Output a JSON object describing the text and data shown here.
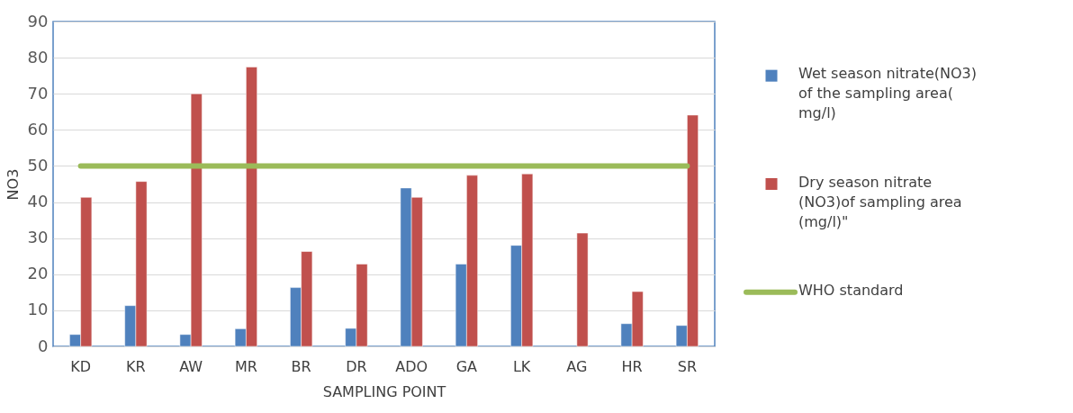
{
  "chart_data": {
    "type": "bar",
    "categories": [
      "KD",
      "KR",
      "AW",
      "MR",
      "BR",
      "DR",
      "ADO",
      "GA",
      "LK",
      "AG",
      "HR",
      "SR"
    ],
    "xlabel": "SAMPLING POINT",
    "ylabel": "NO3",
    "series": [
      {
        "name": "Wet season nitrate(NO3) of the sampling area( mg/l)",
        "color": "#4f81bd",
        "values": [
          3.3,
          11.3,
          3.3,
          4.9,
          16.3,
          5.0,
          43.9,
          22.8,
          28.0,
          null,
          6.3,
          5.8
        ]
      },
      {
        "name": "Dry season nitrate (NO3)of sampling area (mg/l)\"",
        "color": "#c0504d",
        "values": [
          41.3,
          45.7,
          70.0,
          77.4,
          26.3,
          22.8,
          41.3,
          47.4,
          47.8,
          31.4,
          15.2,
          64.1
        ]
      },
      {
        "name": "WHO standard",
        "color": "#9bbb59",
        "type": "line",
        "values": [
          50,
          50,
          50,
          50,
          50,
          50,
          50,
          50,
          50,
          50,
          50,
          50
        ]
      }
    ],
    "ylim": [
      0,
      90
    ],
    "yticks": [
      0,
      10,
      20,
      30,
      40,
      50,
      60,
      70,
      80,
      90
    ],
    "grid": true,
    "legend": "right"
  }
}
